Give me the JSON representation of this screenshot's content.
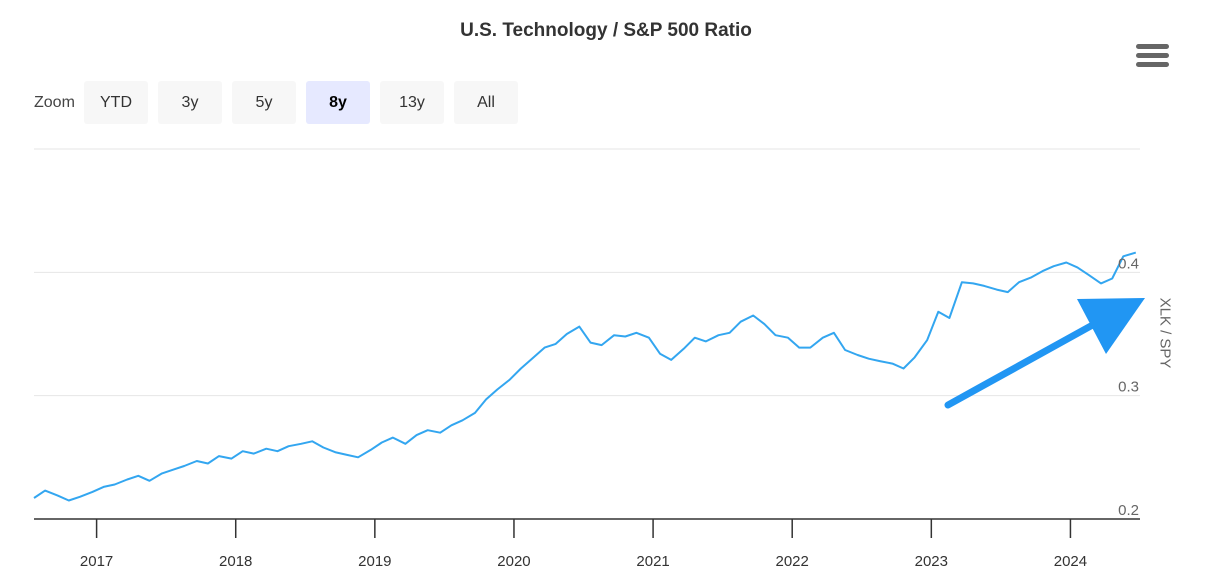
{
  "chart": {
    "title": "U.S. Technology / S&P 500 Ratio",
    "menu_icon": "hamburger-menu-icon",
    "zoom": {
      "label": "Zoom",
      "options": [
        "YTD",
        "3y",
        "5y",
        "8y",
        "13y",
        "All"
      ],
      "selected": "8y"
    }
  },
  "colors": {
    "line": "#33a6f0",
    "arrow": "#2196f3",
    "grid": "#e6e6e6",
    "axis": "#333333"
  },
  "chart_data": {
    "type": "line",
    "title": "U.S. Technology / S&P 500 Ratio",
    "xlabel": "",
    "ylabel": "XLK / SPY",
    "xlim": [
      2016.55,
      2024.5
    ],
    "ylim": [
      0.2,
      0.5
    ],
    "yticks": [
      0.2,
      0.3,
      0.4
    ],
    "ytick_labels": [
      "0.2",
      "0.3",
      "0.4"
    ],
    "xticks": [
      2017,
      2018,
      2019,
      2020,
      2021,
      2022,
      2023,
      2024
    ],
    "xtick_labels": [
      "2017",
      "2018",
      "2019",
      "2020",
      "2021",
      "2022",
      "2023",
      "2024"
    ],
    "grid": true,
    "series": [
      {
        "name": "XLK / SPY",
        "x": [
          2016.55,
          2016.63,
          2016.72,
          2016.8,
          2016.88,
          2016.97,
          2017.05,
          2017.13,
          2017.22,
          2017.3,
          2017.38,
          2017.47,
          2017.55,
          2017.63,
          2017.72,
          2017.8,
          2017.88,
          2017.97,
          2018.05,
          2018.13,
          2018.22,
          2018.3,
          2018.38,
          2018.47,
          2018.55,
          2018.63,
          2018.72,
          2018.8,
          2018.88,
          2018.97,
          2019.05,
          2019.13,
          2019.22,
          2019.3,
          2019.38,
          2019.47,
          2019.55,
          2019.63,
          2019.72,
          2019.8,
          2019.88,
          2019.97,
          2020.05,
          2020.13,
          2020.22,
          2020.3,
          2020.38,
          2020.47,
          2020.55,
          2020.63,
          2020.72,
          2020.8,
          2020.88,
          2020.97,
          2021.05,
          2021.13,
          2021.22,
          2021.3,
          2021.38,
          2021.47,
          2021.55,
          2021.63,
          2021.72,
          2021.8,
          2021.88,
          2021.97,
          2022.05,
          2022.13,
          2022.22,
          2022.3,
          2022.38,
          2022.47,
          2022.55,
          2022.63,
          2022.72,
          2022.8,
          2022.88,
          2022.97,
          2023.05,
          2023.13,
          2023.22,
          2023.3,
          2023.38,
          2023.47,
          2023.55,
          2023.63,
          2023.72,
          2023.8,
          2023.88,
          2023.97,
          2024.05,
          2024.13,
          2024.22,
          2024.3,
          2024.38,
          2024.47
        ],
        "values": [
          0.217,
          0.223,
          0.219,
          0.215,
          0.218,
          0.222,
          0.226,
          0.228,
          0.232,
          0.235,
          0.231,
          0.237,
          0.24,
          0.243,
          0.247,
          0.245,
          0.251,
          0.249,
          0.255,
          0.253,
          0.257,
          0.255,
          0.259,
          0.261,
          0.263,
          0.258,
          0.254,
          0.252,
          0.25,
          0.256,
          0.262,
          0.266,
          0.261,
          0.268,
          0.272,
          0.27,
          0.276,
          0.28,
          0.286,
          0.297,
          0.305,
          0.313,
          0.322,
          0.33,
          0.339,
          0.342,
          0.35,
          0.356,
          0.343,
          0.341,
          0.349,
          0.348,
          0.351,
          0.347,
          0.334,
          0.329,
          0.338,
          0.347,
          0.344,
          0.349,
          0.351,
          0.36,
          0.365,
          0.358,
          0.349,
          0.347,
          0.339,
          0.339,
          0.347,
          0.351,
          0.337,
          0.333,
          0.33,
          0.328,
          0.326,
          0.322,
          0.331,
          0.345,
          0.368,
          0.363,
          0.392,
          0.391,
          0.389,
          0.386,
          0.384,
          0.392,
          0.396,
          0.401,
          0.405,
          0.408,
          0.404,
          0.398,
          0.391,
          0.395,
          0.413,
          0.416
        ]
      }
    ],
    "annotations": [
      {
        "type": "arrow",
        "description": "upward trend arrow pointing at the latest value"
      }
    ]
  }
}
